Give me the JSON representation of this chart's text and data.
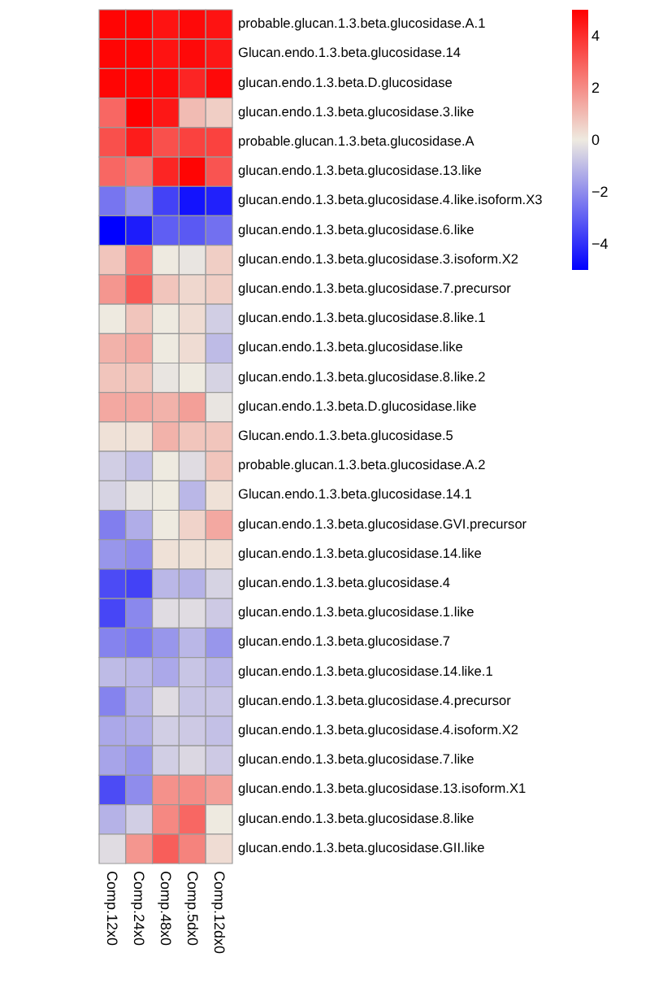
{
  "chart_data": {
    "type": "heatmap",
    "categories": [
      "Comp.12x0",
      "Comp.24x0",
      "Comp.48x0",
      "Comp.5dx0",
      "Comp.12dx0"
    ],
    "y_categories": [
      "probable.glucan.1.3.beta.glucosidase.A.1",
      "Glucan.endo.1.3.beta.glucosidase.14",
      "glucan.endo.1.3.beta.D.glucosidase",
      "glucan.endo.1.3.beta.glucosidase.3.like",
      "probable.glucan.1.3.beta.glucosidase.A",
      "glucan.endo.1.3.beta.glucosidase.13.like",
      "glucan.endo.1.3.beta.glucosidase.4.like.isoform.X3",
      "glucan.endo.1.3.beta.glucosidase.6.like",
      "glucan.endo.1.3.beta.glucosidase.3.isoform.X2",
      "glucan.endo.1.3.beta.glucosidase.7.precursor",
      "glucan.endo.1.3.beta.glucosidase.8.like.1",
      "glucan.endo.1.3.beta.glucosidase.like",
      "glucan.endo.1.3.beta.glucosidase.8.like.2",
      "glucan.endo.1.3.beta.D.glucosidase.like",
      "Glucan.endo.1.3.beta.glucosidase.5",
      "probable.glucan.1.3.beta.glucosidase.A.2",
      "Glucan.endo.1.3.beta.glucosidase.14.1",
      "glucan.endo.1.3.beta.glucosidase.GVI.precursor",
      "glucan.endo.1.3.beta.glucosidase.14.like",
      "glucan.endo.1.3.beta.glucosidase.4",
      "glucan.endo.1.3.beta.glucosidase.1.like",
      "glucan.endo.1.3.beta.glucosidase.7",
      "glucan.endo.1.3.beta.glucosidase.14.like.1",
      "glucan.endo.1.3.beta.glucosidase.4.precursor",
      "glucan.endo.1.3.beta.glucosidase.4.isoform.X2",
      "glucan.endo.1.3.beta.glucosidase.7.like",
      "glucan.endo.1.3.beta.glucosidase.13.isoform.X1",
      "glucan.endo.1.3.beta.glucosidase.8.like",
      "glucan.endo.1.3.beta.glucosidase.GII.like"
    ],
    "cells": [
      [
        4.9,
        4.9,
        4.6,
        4.8,
        4.6
      ],
      [
        4.9,
        4.9,
        4.6,
        4.8,
        4.5
      ],
      [
        4.9,
        4.9,
        4.8,
        4.2,
        4.8
      ],
      [
        2.8,
        5.0,
        4.5,
        1.0,
        0.6
      ],
      [
        3.3,
        4.4,
        3.3,
        3.6,
        3.6
      ],
      [
        2.8,
        2.5,
        4.2,
        4.9,
        3.2
      ],
      [
        -2.5,
        -1.8,
        -3.6,
        -4.6,
        -4.3
      ],
      [
        -5.0,
        -4.4,
        -3.0,
        -3.1,
        -2.6
      ],
      [
        0.8,
        2.5,
        0.0,
        -0.1,
        0.6
      ],
      [
        1.8,
        3.1,
        0.8,
        0.4,
        0.6
      ],
      [
        0.0,
        0.8,
        0.0,
        0.3,
        -0.6
      ],
      [
        1.2,
        1.4,
        0.0,
        0.3,
        -1.0
      ],
      [
        0.8,
        0.8,
        -0.1,
        0.0,
        -0.5
      ],
      [
        1.4,
        1.4,
        1.2,
        1.6,
        -0.1
      ],
      [
        0.2,
        0.2,
        1.2,
        0.8,
        0.8
      ],
      [
        -0.6,
        -0.9,
        0.0,
        -0.3,
        0.8
      ],
      [
        -0.5,
        -0.1,
        0.0,
        -1.1,
        0.2
      ],
      [
        -2.3,
        -1.3,
        0.0,
        0.5,
        1.4
      ],
      [
        -1.8,
        -2.0,
        0.2,
        0.2,
        0.2
      ],
      [
        -3.4,
        -3.6,
        -1.1,
        -1.2,
        -0.5
      ],
      [
        -3.5,
        -2.1,
        -0.3,
        -0.3,
        -0.7
      ],
      [
        -2.2,
        -2.4,
        -1.8,
        -1.1,
        -1.8
      ],
      [
        -1.0,
        -1.1,
        -1.4,
        -0.8,
        -1.1
      ],
      [
        -2.2,
        -1.2,
        -0.3,
        -0.8,
        -0.8
      ],
      [
        -1.4,
        -1.3,
        -0.6,
        -0.7,
        -0.9
      ],
      [
        -1.5,
        -1.8,
        -0.6,
        -0.4,
        -0.7
      ],
      [
        -3.4,
        -2.0,
        1.9,
        2.0,
        1.6
      ],
      [
        -1.2,
        -0.6,
        2.1,
        2.8,
        0.0
      ],
      [
        -0.3,
        1.8,
        3.0,
        2.2,
        0.3
      ]
    ],
    "clim": [
      -5,
      5
    ],
    "cticks": [
      -4,
      -2,
      0,
      2,
      4
    ]
  }
}
